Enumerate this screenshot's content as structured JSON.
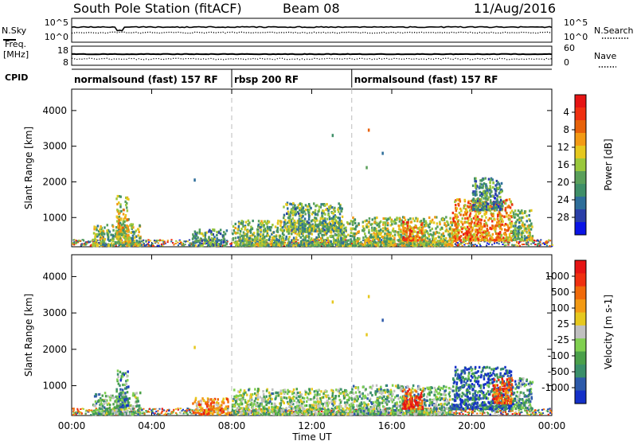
{
  "header": {
    "station": "South Pole Station (fitACF)",
    "beam": "Beam 08",
    "date": "11/Aug/2016"
  },
  "panel_labels": {
    "nsky": "N.Sky",
    "nsearch": "N.Search",
    "freq": "Freq.",
    "freq_unit": "[MHz]",
    "nave": "Nave",
    "cpid": "CPID"
  },
  "top_ticks": {
    "noise_left": [
      "10^5",
      "10^0"
    ],
    "noise_right": [
      "10^5",
      "10^0"
    ],
    "freq_left": [
      "18",
      "8"
    ],
    "nave_right": [
      "60",
      "0"
    ]
  },
  "cpid_segments": [
    {
      "label": "normalsound (fast) 157 RF",
      "start_hr": 0.0,
      "end_hr": 8.0
    },
    {
      "label": "rbsp 200 RF",
      "start_hr": 8.0,
      "end_hr": 14.0
    },
    {
      "label": "normalsound (fast) 157 RF",
      "start_hr": 14.0,
      "end_hr": 24.0
    }
  ],
  "chart_data": [
    {
      "type": "heatmap",
      "title": "Power",
      "ylabel": "Slant Range [km]",
      "xlabel": "Time UT",
      "xlim": [
        0,
        24
      ],
      "ylim": [
        180,
        4600
      ],
      "x_ticks": [
        "00:00",
        "04:00",
        "08:00",
        "12:00",
        "16:00",
        "20:00",
        "00:00"
      ],
      "y_ticks": [
        "1000",
        "2000",
        "3000",
        "4000"
      ],
      "colorbar": {
        "label": "Power [dB]",
        "ticks": [
          "4",
          "8",
          "12",
          "16",
          "20",
          "24",
          "28"
        ],
        "colors": [
          "#0a14e6",
          "#2a3fa8",
          "#2e6e9a",
          "#3f8f68",
          "#5aa05a",
          "#9ac83c",
          "#e6c81e",
          "#f39a14",
          "#e8620a",
          "#f03010",
          "#e61414"
        ]
      },
      "clusters": [
        {
          "x": [
            1.0,
            3.4
          ],
          "y": [
            200,
            800
          ],
          "level": 0.45
        },
        {
          "x": [
            2.2,
            2.8
          ],
          "y": [
            400,
            1600
          ],
          "level": 0.55
        },
        {
          "x": [
            6.0,
            7.8
          ],
          "y": [
            200,
            650
          ],
          "level": 0.35
        },
        {
          "x": [
            8.0,
            14.0
          ],
          "y": [
            200,
            900
          ],
          "level": 0.45
        },
        {
          "x": [
            10.5,
            13.5
          ],
          "y": [
            600,
            1400
          ],
          "level": 0.4
        },
        {
          "x": [
            14.0,
            19.0
          ],
          "y": [
            200,
            1000
          ],
          "level": 0.5
        },
        {
          "x": [
            16.5,
            17.5
          ],
          "y": [
            350,
            900
          ],
          "level": 0.75
        },
        {
          "x": [
            19.0,
            22.0
          ],
          "y": [
            350,
            1500
          ],
          "level": 0.7
        },
        {
          "x": [
            20.0,
            21.5
          ],
          "y": [
            1200,
            2100
          ],
          "level": 0.3
        },
        {
          "x": [
            22.0,
            23.0
          ],
          "y": [
            350,
            1200
          ],
          "level": 0.45
        }
      ],
      "scattered_points": [
        {
          "x": 13.0,
          "y": 3300
        },
        {
          "x": 14.8,
          "y": 3450
        },
        {
          "x": 14.7,
          "y": 2400
        },
        {
          "x": 6.1,
          "y": 2050
        },
        {
          "x": 15.5,
          "y": 2800
        }
      ]
    },
    {
      "type": "heatmap",
      "title": "Velocity",
      "ylabel": "Slant Range [km]",
      "xlabel": "Time UT",
      "xlim": [
        0,
        24
      ],
      "ylim": [
        180,
        4600
      ],
      "x_ticks": [
        "00:00",
        "04:00",
        "08:00",
        "12:00",
        "16:00",
        "20:00",
        "00:00"
      ],
      "y_ticks": [
        "1000",
        "2000",
        "3000",
        "4000"
      ],
      "colorbar": {
        "label": "Velocity [m s-1]",
        "ticks": [
          "1000",
          "500",
          "100",
          "25",
          "-25",
          "-100",
          "-500",
          "-1000"
        ],
        "colors": [
          "#1430c8",
          "#2d5aaa",
          "#3a8f6a",
          "#4aa04a",
          "#80d050",
          "#c0c0c0",
          "#e6c81e",
          "#f39a14",
          "#f06a0a",
          "#f03010",
          "#e61414"
        ]
      },
      "clusters": [
        {
          "x": [
            1.0,
            3.4
          ],
          "y": [
            200,
            800
          ],
          "level": 0.35
        },
        {
          "x": [
            2.2,
            2.8
          ],
          "y": [
            400,
            1400
          ],
          "level": 0.25
        },
        {
          "x": [
            6.0,
            7.8
          ],
          "y": [
            200,
            650
          ],
          "level": 0.7
        },
        {
          "x": [
            8.0,
            14.0
          ],
          "y": [
            200,
            900
          ],
          "level": 0.4
        },
        {
          "x": [
            14.0,
            19.0
          ],
          "y": [
            200,
            1000
          ],
          "level": 0.35
        },
        {
          "x": [
            16.5,
            17.5
          ],
          "y": [
            350,
            900
          ],
          "level": 0.85
        },
        {
          "x": [
            19.0,
            22.0
          ],
          "y": [
            350,
            1500
          ],
          "level": 0.15
        },
        {
          "x": [
            21.0,
            22.0
          ],
          "y": [
            500,
            1200
          ],
          "level": 0.8
        },
        {
          "x": [
            22.0,
            23.0
          ],
          "y": [
            350,
            1200
          ],
          "level": 0.3
        }
      ],
      "scattered_points": [
        {
          "x": 13.0,
          "y": 3300
        },
        {
          "x": 14.8,
          "y": 3450
        },
        {
          "x": 14.7,
          "y": 2400
        },
        {
          "x": 6.1,
          "y": 2050
        },
        {
          "x": 15.5,
          "y": 2800
        }
      ]
    }
  ]
}
